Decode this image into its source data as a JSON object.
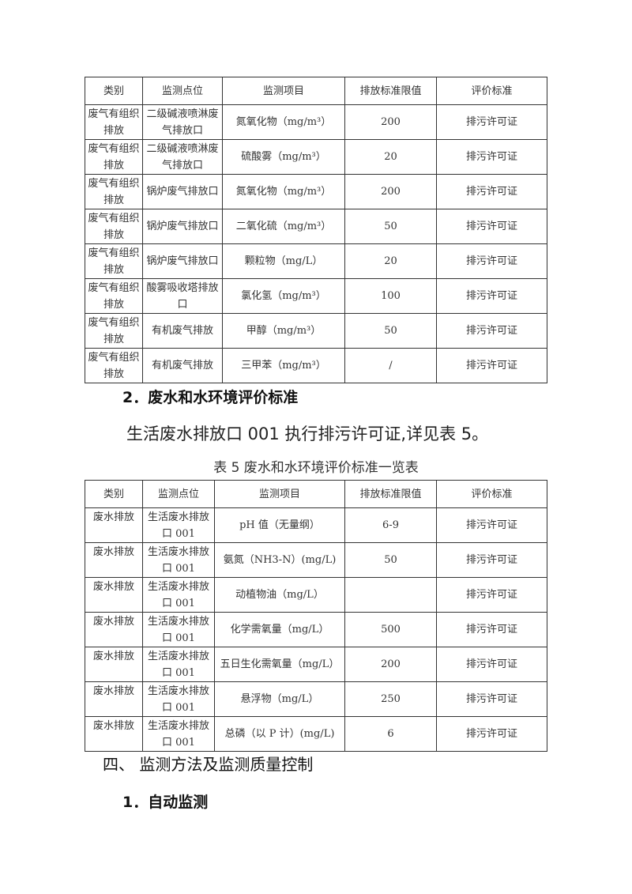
{
  "table4": {
    "headers": [
      "类别",
      "监测点位",
      "监测项目",
      "排放标准限值",
      "评价标准"
    ],
    "rows": [
      [
        "废气有组织排放",
        "二级碱液喷淋废气排放口",
        "氮氧化物（mg/m³）",
        "200",
        "排污许可证"
      ],
      [
        "废气有组织排放",
        "二级碱液喷淋废气排放口",
        "硫酸雾（mg/m³）",
        "20",
        "排污许可证"
      ],
      [
        "废气有组织排放",
        "锅炉废气排放口",
        "氮氧化物（mg/m³）",
        "200",
        "排污许可证"
      ],
      [
        "废气有组织排放",
        "锅炉废气排放口",
        "二氧化硫（mg/m³）",
        "50",
        "排污许可证"
      ],
      [
        "废气有组织排放",
        "锅炉废气排放口",
        "颗粒物（mg/L）",
        "20",
        "排污许可证"
      ],
      [
        "废气有组织排放",
        "酸雾吸收塔排放口",
        "氯化氢（mg/m³）",
        "100",
        "排污许可证"
      ],
      [
        "废气有组织排放",
        "有机废气排放",
        "甲醇（mg/m³）",
        "50",
        "排污许可证"
      ],
      [
        "废气有组织排放",
        "有机废气排放",
        "三甲苯（mg/m³）",
        "/",
        "排污许可证"
      ]
    ]
  },
  "section2_heading": "2．废水和水环境评价标准",
  "section2_paragraph": "生活废水排放口 001 执行排污许可证,详见表 5。",
  "table5_caption": "表 5 废水和水环境评价标准一览表",
  "table5": {
    "headers": [
      "类别",
      "监测点位",
      "监测项目",
      "排放标准限值",
      "评价标准"
    ],
    "rows": [
      [
        "废水排放",
        "生活废水排放口 001",
        "pH 值（无量纲）",
        "6-9",
        "排污许可证"
      ],
      [
        "废水排放",
        "生活废水排放口 001",
        "氨氮（NH3-N）(mg/L)",
        "50",
        "排污许可证"
      ],
      [
        "废水排放",
        "生活废水排放口 001",
        "动植物油（mg/L）",
        "",
        "排污许可证"
      ],
      [
        "废水排放",
        "生活废水排放口 001",
        "化学需氧量（mg/L）",
        "500",
        "排污许可证"
      ],
      [
        "废水排放",
        "生活废水排放口 001",
        "五日生化需氧量（mg/L）",
        "200",
        "排污许可证"
      ],
      [
        "废水排放",
        "生活废水排放口 001",
        "悬浮物（mg/L）",
        "250",
        "排污许可证"
      ],
      [
        "废水排放",
        "生活废水排放口 001",
        "总磷（以 P 计）(mg/L)",
        "6",
        "排污许可证"
      ]
    ]
  },
  "section4_heading": "四、 监测方法及监测质量控制",
  "section4_1_heading": "1．自动监测"
}
